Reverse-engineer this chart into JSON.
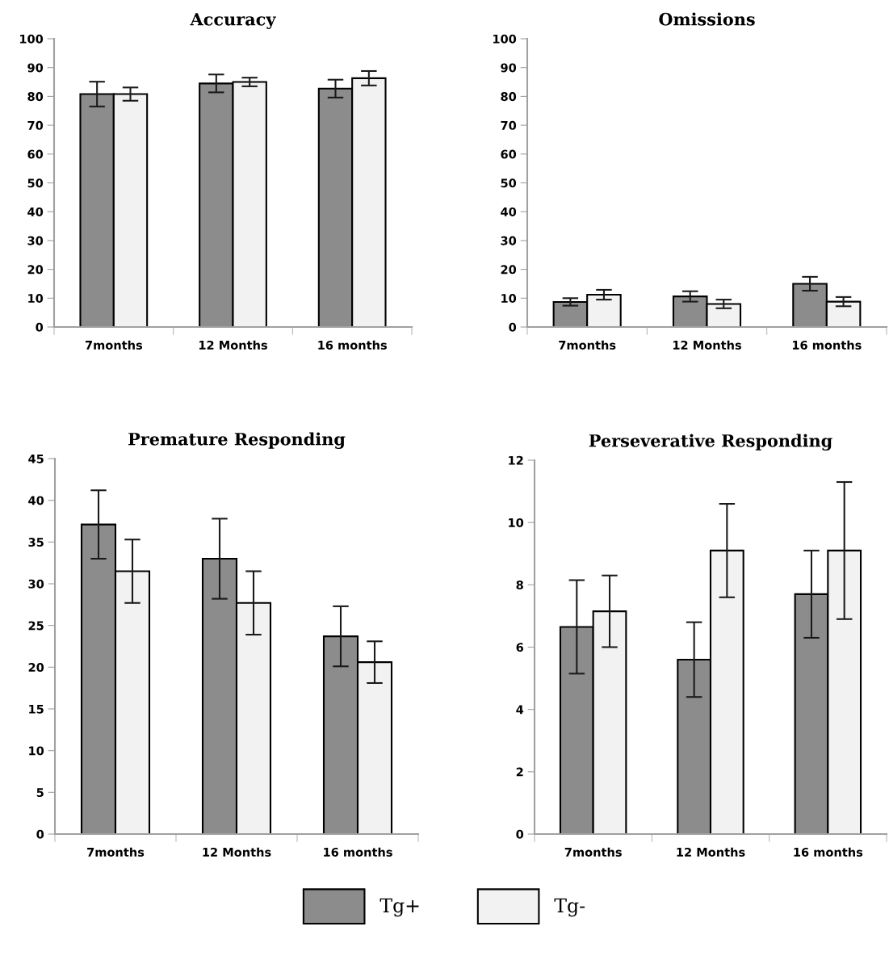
{
  "chart_data": [
    {
      "type": "bar",
      "title": "Accuracy",
      "categories": [
        "7months",
        "12 Months",
        "16 months"
      ],
      "ylim": [
        0,
        100
      ],
      "yticks": [
        0,
        10,
        20,
        30,
        40,
        50,
        60,
        70,
        80,
        90,
        100
      ],
      "grid": false,
      "legend": "bottom",
      "series": [
        {
          "name": "Tg+",
          "color": "#8c8c8c",
          "values": [
            80.8,
            84.5,
            82.7
          ],
          "errors": [
            4.3,
            3.1,
            3.1
          ]
        },
        {
          "name": "Tg-",
          "color": "#f2f2f2",
          "values": [
            80.8,
            85.0,
            86.3
          ],
          "errors": [
            2.3,
            1.5,
            2.5
          ]
        }
      ]
    },
    {
      "type": "bar",
      "title": "Omissions",
      "categories": [
        "7months",
        "12 Months",
        "16 months"
      ],
      "ylim": [
        0,
        100
      ],
      "yticks": [
        0,
        10,
        20,
        30,
        40,
        50,
        60,
        70,
        80,
        90,
        100
      ],
      "grid": false,
      "series": [
        {
          "color": "#8c8c8c",
          "values": [
            8.7,
            10.6,
            15.0
          ],
          "errors": [
            1.3,
            1.8,
            2.4
          ]
        },
        {
          "color": "#f2f2f2",
          "values": [
            11.2,
            8.0,
            8.8
          ],
          "errors": [
            1.7,
            1.5,
            1.6
          ]
        }
      ]
    },
    {
      "type": "bar",
      "title": "Premature Responding",
      "categories": [
        "7months",
        "12 Months",
        "16 months"
      ],
      "ylim": [
        0,
        45
      ],
      "yticks": [
        0,
        5,
        10,
        15,
        20,
        25,
        30,
        35,
        40,
        45
      ],
      "grid": false,
      "series": [
        {
          "color": "#8c8c8c",
          "values": [
            37.1,
            33.0,
            23.7
          ],
          "errors": [
            4.1,
            4.8,
            3.6
          ]
        },
        {
          "color": "#f2f2f2",
          "values": [
            31.5,
            27.7,
            20.6
          ],
          "errors": [
            3.8,
            3.8,
            2.5
          ]
        }
      ]
    },
    {
      "type": "bar",
      "title": "Perseverative Responding",
      "categories": [
        "7months",
        "12 Months",
        "16 months"
      ],
      "ylim": [
        0,
        12
      ],
      "yticks": [
        0,
        2,
        4,
        6,
        8,
        10,
        12
      ],
      "grid": false,
      "series": [
        {
          "color": "#8c8c8c",
          "values": [
            6.65,
            5.6,
            7.7
          ],
          "errors": [
            1.5,
            1.2,
            1.4
          ]
        },
        {
          "color": "#f2f2f2",
          "values": [
            7.15,
            9.1,
            9.1
          ],
          "errors": [
            1.15,
            1.5,
            2.2
          ]
        }
      ]
    }
  ]
}
